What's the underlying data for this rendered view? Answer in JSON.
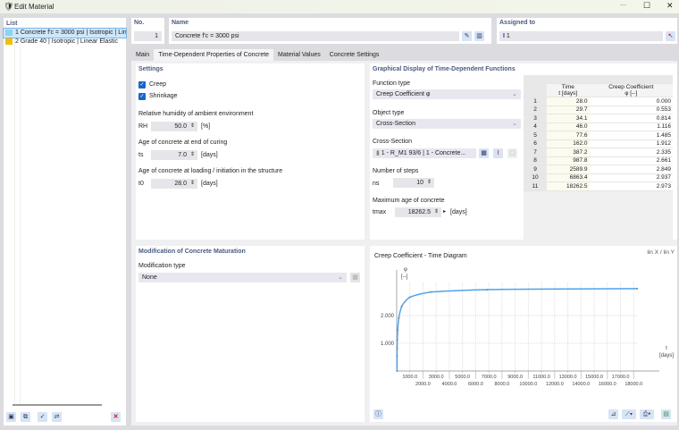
{
  "window": {
    "title": "Edit Material",
    "minimize": "—",
    "maximize": "☐",
    "close": "✕"
  },
  "list": {
    "header": "List",
    "items": [
      {
        "no": "1",
        "label": "Concrete f'c = 3000 psi | Isotropic | Linear",
        "color": "#8fd0f3"
      },
      {
        "no": "2",
        "label": "Grade 40 | Isotropic | Linear Elastic",
        "color": "#f0c000"
      }
    ]
  },
  "no": {
    "header": "No.",
    "value": "1"
  },
  "name": {
    "header": "Name",
    "value": "Concrete f'c = 3000 psi"
  },
  "assigned": {
    "header": "Assigned to",
    "value": "1"
  },
  "tabs": [
    "Main",
    "Time-Dependent Properties of Concrete",
    "Material Values",
    "Concrete Settings"
  ],
  "settings": {
    "header": "Settings",
    "creep": "Creep",
    "shrinkage": "Shrinkage",
    "creep_checked": true,
    "shrinkage_checked": true,
    "rh_label": "Relative humidity of ambient environment",
    "rh_sym": "RH",
    "rh_value": "50.0",
    "rh_unit": "[%]",
    "ts_label": "Age of concrete at end of curing",
    "ts_sym": "ts",
    "ts_value": "7.0",
    "ts_unit": "[days]",
    "t0_label": "Age of concrete at loading / initiation in the structure",
    "t0_sym": "t0",
    "t0_value": "28.0",
    "t0_unit": "[days]"
  },
  "modification": {
    "header": "Modification of Concrete Maturation",
    "type_label": "Modification type",
    "type_value": "None"
  },
  "graphical": {
    "header": "Graphical Display of Time-Dependent Functions",
    "function_label": "Function type",
    "function_value": "Creep Coefficient φ",
    "object_label": "Object type",
    "object_value": "Cross-Section",
    "cs_label": "Cross-Section",
    "cs_value": "1 - R_M1 93/6 | 1 - Concrete...",
    "steps_label": "Number of steps",
    "steps_sym": "ns",
    "steps_value": "10",
    "max_label": "Maximum age of concrete",
    "max_sym": "tmax",
    "max_value": "18262.5",
    "max_unit": "[days]"
  },
  "table": {
    "col1a": "Time",
    "col1b": "t [days]",
    "col2a": "Creep Coefficient",
    "col2b": "φ [--]",
    "rows": [
      [
        "1",
        "28.0",
        "0.000"
      ],
      [
        "2",
        "29.7",
        "0.553"
      ],
      [
        "3",
        "34.1",
        "0.814"
      ],
      [
        "4",
        "46.0",
        "1.116"
      ],
      [
        "5",
        "77.6",
        "1.485"
      ],
      [
        "6",
        "162.0",
        "1.912"
      ],
      [
        "7",
        "387.2",
        "2.335"
      ],
      [
        "8",
        "987.8",
        "2.661"
      ],
      [
        "9",
        "2589.9",
        "2.849"
      ],
      [
        "10",
        "6863.4",
        "2.937"
      ],
      [
        "11",
        "18262.5",
        "2.973"
      ]
    ]
  },
  "chart_data": {
    "type": "line",
    "title": "Creep Coefficient - Time Diagram",
    "scale_mode": "lin X / lin Y",
    "xlabel": "t",
    "xunit": "[days]",
    "ylabel": "φ",
    "yunit": "[--]",
    "x": [
      28.0,
      29.7,
      34.1,
      46.0,
      77.6,
      162.0,
      387.2,
      987.8,
      2589.9,
      6863.4,
      18262.5
    ],
    "y": [
      0.0,
      0.553,
      0.814,
      1.116,
      1.485,
      1.912,
      2.335,
      2.661,
      2.849,
      2.937,
      2.973
    ],
    "xticks": [
      "1000.0",
      "2000.0",
      "3000.0",
      "4000.0",
      "5000.0",
      "6000.0",
      "7000.0",
      "8000.0",
      "9000.0",
      "10000.0",
      "11000.0",
      "12000.0",
      "13000.0",
      "14000.0",
      "15000.0",
      "16000.0",
      "17000.0",
      "18000.0"
    ],
    "yticks": [
      "1.000",
      "2.000"
    ],
    "xlim": [
      0,
      19000
    ],
    "ylim": [
      0,
      3.4
    ],
    "grid": true,
    "color": "#4da3f0"
  }
}
